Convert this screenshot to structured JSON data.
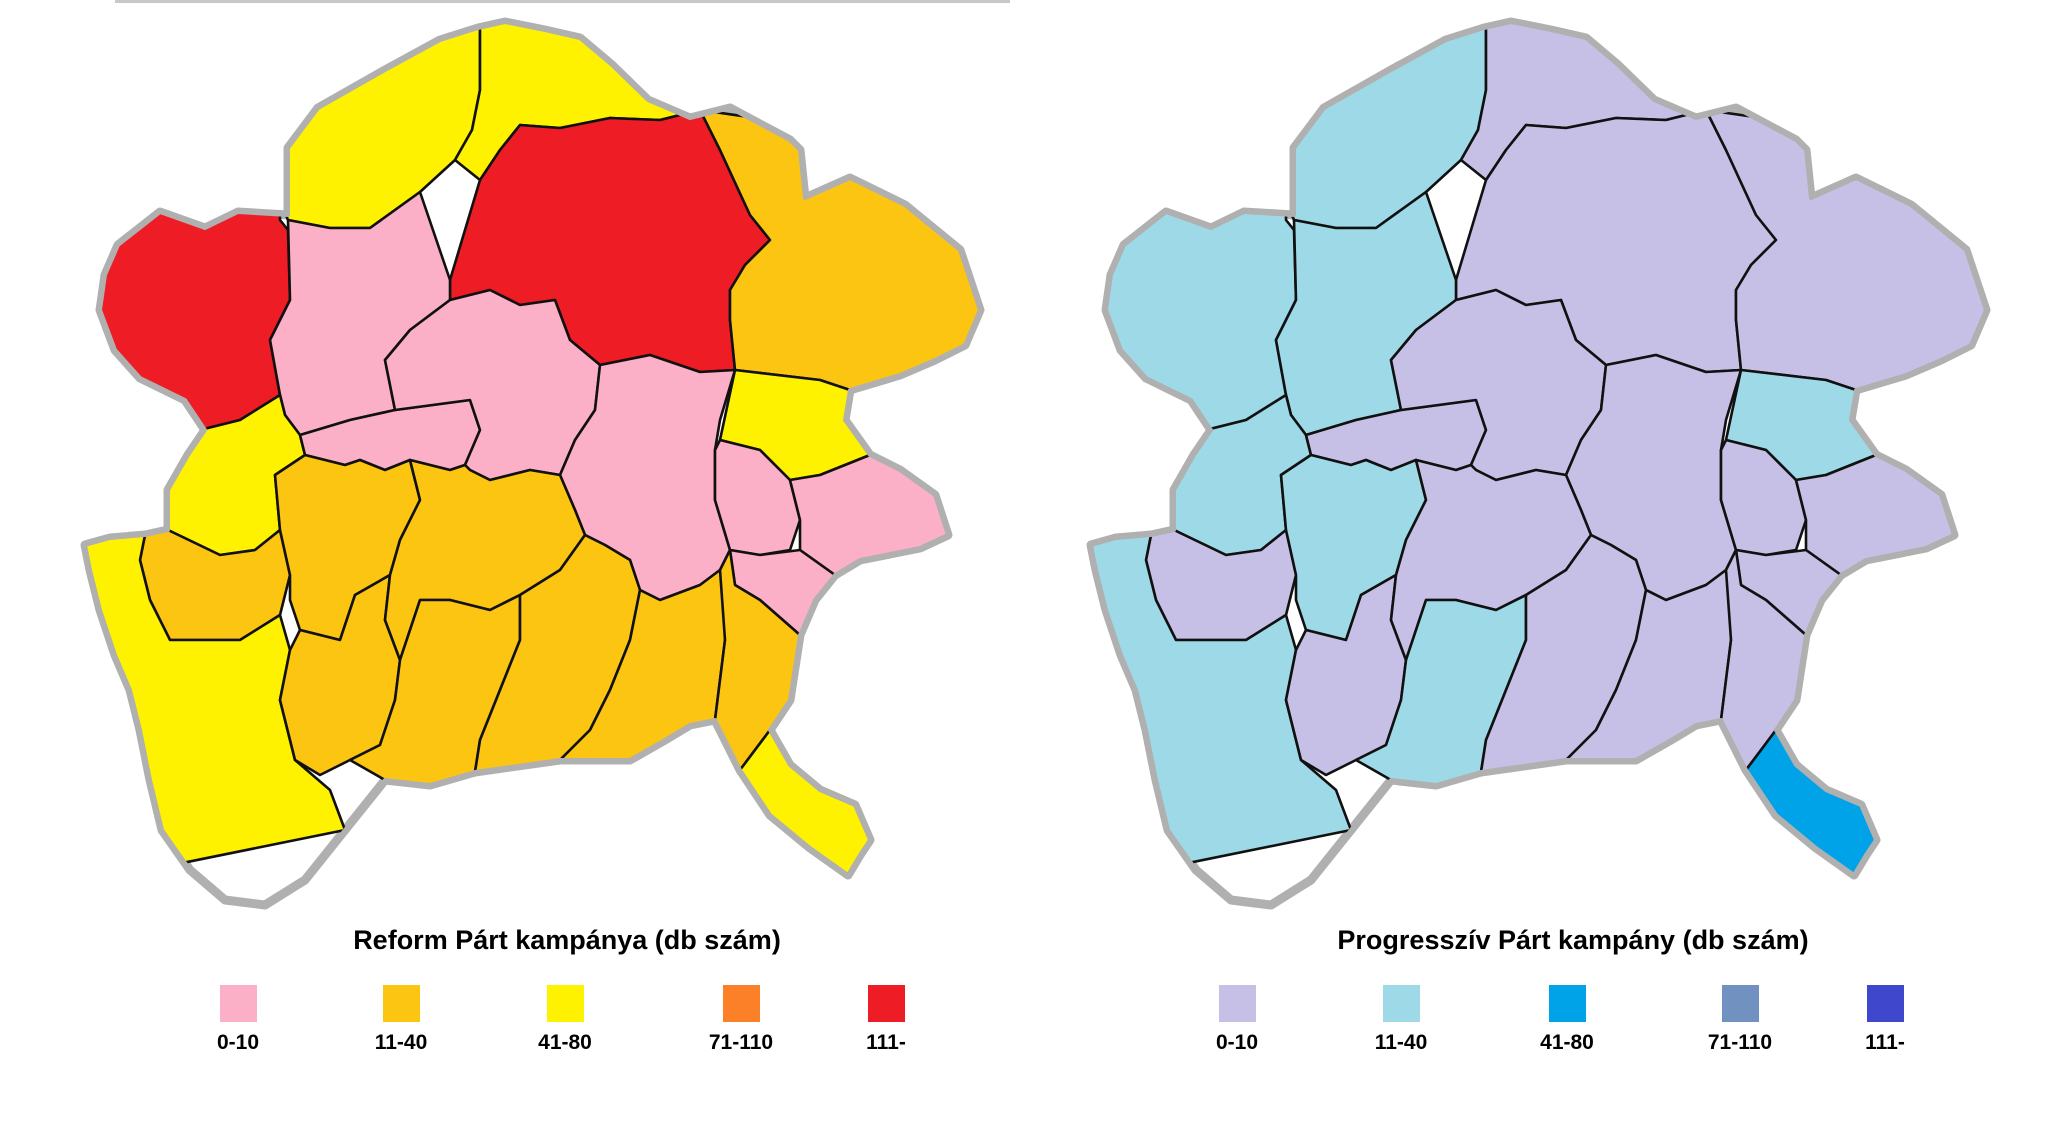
{
  "colors": {
    "outline": "#b0b0b0",
    "border": "#111111",
    "reform": [
      "#fcb0c8",
      "#fcc512",
      "#fef200",
      "#fc8028",
      "#ee1c25"
    ],
    "progressive": [
      "#c7c0e6",
      "#9ed9e8",
      "#00a2e8",
      "#7192c0",
      "#3f48cc"
    ]
  },
  "maps": [
    {
      "id": "reform",
      "title": "Reform Párt kampánya (db szám)",
      "legend": [
        {
          "label": "0-10",
          "color": "#fcb0c8"
        },
        {
          "label": "11-40",
          "color": "#fcc512"
        },
        {
          "label": "41-80",
          "color": "#fef200"
        },
        {
          "label": "71-110",
          "color": "#fc8028"
        },
        {
          "label": "111-",
          "color": "#ee1c25"
        }
      ],
      "district_classes": [
        2,
        2,
        4,
        1,
        4,
        0,
        2,
        0,
        0,
        0,
        2,
        0,
        0,
        0,
        1,
        1,
        2,
        1,
        1,
        1,
        1,
        1,
        1,
        2
      ]
    },
    {
      "id": "progressive",
      "title": "Progresszív Párt kampány (db szám)",
      "legend": [
        {
          "label": "0-10",
          "color": "#c7c0e6"
        },
        {
          "label": "11-40",
          "color": "#9ed9e8"
        },
        {
          "label": "41-80",
          "color": "#00a2e8"
        },
        {
          "label": "71-110",
          "color": "#7192c0"
        },
        {
          "label": "111-",
          "color": "#3f48cc"
        }
      ],
      "district_classes": [
        1,
        0,
        0,
        0,
        1,
        1,
        1,
        0,
        0,
        0,
        1,
        0,
        0,
        0,
        0,
        1,
        1,
        0,
        0,
        1,
        0,
        0,
        0,
        2
      ]
    }
  ]
}
